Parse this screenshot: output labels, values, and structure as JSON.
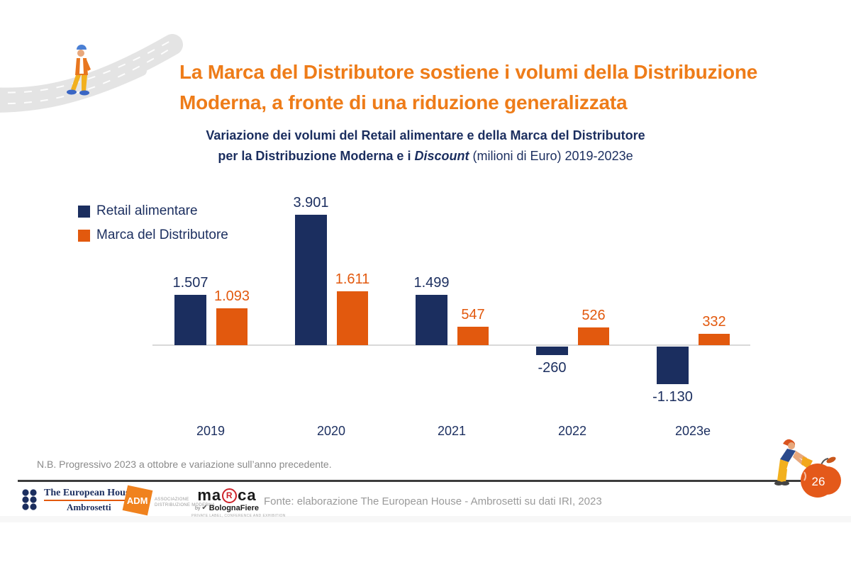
{
  "colors": {
    "title_orange": "#ee7c19",
    "navy": "#1b2e5f",
    "orange": "#e2590e",
    "axis_gray": "#d9d9d9"
  },
  "slide": {
    "title_line1": "La Marca del Distributore sostiene i volumi della Distribuzione",
    "title_line2": "Moderna, a fronte di una riduzione generalizzata",
    "subtitle_line1": "Variazione dei volumi del Retail alimentare e della Marca del Distributore",
    "subtitle_line2_prefix": "per la Distribuzione Moderna e i ",
    "subtitle_line2_italic": "Discount",
    "subtitle_line2_suffix": " (milioni di Euro) 2019-2023e",
    "note": "N.B. Progressivo 2023 a ottobre e variazione sull’anno precedente.",
    "source": "Fonte: elaborazione The European House - Ambrosetti su dati IRI, 2023",
    "page_number": "26"
  },
  "legend": {
    "items": [
      {
        "label": "Retail alimentare",
        "color": "#1b2e5f"
      },
      {
        "label": "Marca del Distributore",
        "color": "#e2590e"
      }
    ]
  },
  "chart_data": {
    "type": "bar",
    "title": "Variazione dei volumi del Retail alimentare e della Marca del Distributore per la Distribuzione Moderna e i Discount (milioni di Euro) 2019-2023e",
    "categories": [
      "2019",
      "2020",
      "2021",
      "2022",
      "2023e"
    ],
    "series": [
      {
        "name": "Retail alimentare",
        "color": "#1b2e5f",
        "values": [
          1507,
          3901,
          1499,
          -260,
          -1130
        ],
        "labels": [
          "1.507",
          "3.901",
          "1.499",
          "-260",
          "-1.130"
        ]
      },
      {
        "name": "Marca del Distributore",
        "color": "#e2590e",
        "values": [
          1093,
          1611,
          547,
          526,
          332
        ],
        "labels": [
          "1.093",
          "1.611",
          "547",
          "526",
          "332"
        ]
      }
    ],
    "unit": "milioni di Euro",
    "ylim": [
      -1300,
      4100
    ],
    "grid": false,
    "zero_line": true,
    "legend_position": "top-left",
    "value_labels": true
  },
  "logos": {
    "teh": {
      "line1": "The European House",
      "line2": "Ambrosetti"
    },
    "adm": {
      "text": "ADM",
      "desc_line1": "ASSOCIAZIONE",
      "desc_line2": "DISTRIBUZIONE MODERNA"
    },
    "marca": {
      "part1": "ma",
      "r": "R",
      "part2": "ca",
      "by": "by",
      "bologna": "BolognaFiere",
      "tagline": "PRIVATE LABEL, CONFERENCE AND EXHIBITION"
    }
  }
}
